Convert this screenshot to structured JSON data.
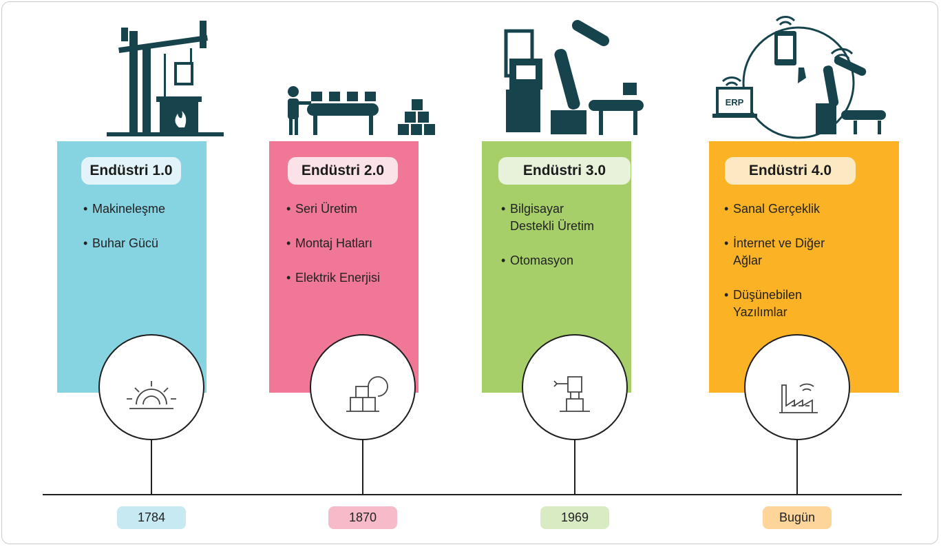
{
  "columns": [
    {
      "title": "Endüstri 1.0",
      "items": [
        "Makineleşme",
        "Buhar Gücü"
      ],
      "year": "1784"
    },
    {
      "title": "Endüstri 2.0",
      "items": [
        "Seri Üretim",
        "Montaj Hatları",
        "Elektrik Enerjisi"
      ],
      "year": "1870"
    },
    {
      "title": "Endüstri 3.0",
      "items": [
        "Bilgisayar Destekli Üretim",
        "Otomasyon"
      ],
      "year": "1969"
    },
    {
      "title": "Endüstri 4.0",
      "items": [
        "Sanal Gerçeklik",
        "İnternet ve Diğer Ağlar",
        "Düşünebilen Yazılımlar"
      ],
      "year": "Bugün",
      "icon_label": "ERP"
    }
  ]
}
